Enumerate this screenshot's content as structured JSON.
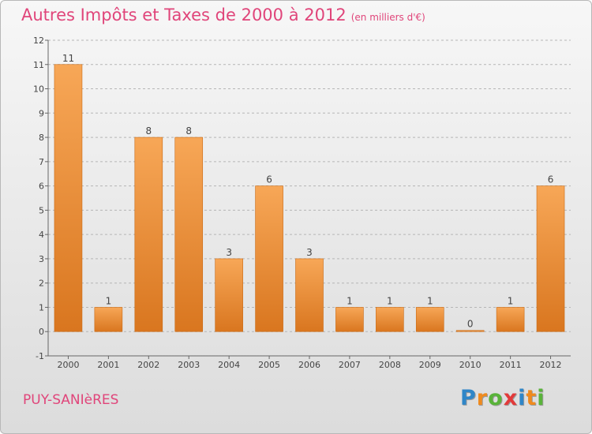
{
  "title": "Autres Impôts et Taxes de 2000 à 2012",
  "subtitle": "(en milliers d'€)",
  "place": "PUY-SANIèRES",
  "logo": {
    "text": "Proxiti",
    "letters": [
      {
        "ch": "P",
        "color": "#2f86c8"
      },
      {
        "ch": "r",
        "color": "#ef8a1e"
      },
      {
        "ch": "o",
        "color": "#59b33a"
      },
      {
        "ch": "x",
        "color": "#e23a3a"
      },
      {
        "ch": "i",
        "color": "#2f86c8"
      },
      {
        "ch": "t",
        "color": "#ef8a1e"
      },
      {
        "ch": "i",
        "color": "#59b33a"
      }
    ]
  },
  "colors": {
    "title": "#e0457a",
    "bar_top": "#f7a757",
    "bar_bottom": "#d9761f",
    "grid": "#b5b5b5",
    "axis_text": "#444444"
  },
  "chart_data": {
    "type": "bar",
    "title": "Autres Impôts et Taxes de 2000 à 2012",
    "subtitle": "(en milliers d'€)",
    "categories": [
      "2000",
      "2001",
      "2002",
      "2003",
      "2004",
      "2005",
      "2006",
      "2007",
      "2008",
      "2009",
      "2010",
      "2011",
      "2012"
    ],
    "values": [
      11,
      1,
      8,
      8,
      3,
      6,
      3,
      1,
      1,
      1,
      0,
      1,
      6
    ],
    "value_labels": [
      "11",
      "1",
      "8",
      "8",
      "3",
      "6",
      "3",
      "1",
      "1",
      "1",
      "0",
      "1",
      "6"
    ],
    "ylim": [
      -1,
      12
    ],
    "yticks": [
      -1,
      0,
      1,
      2,
      3,
      4,
      5,
      6,
      7,
      8,
      9,
      10,
      11,
      12
    ],
    "ytick_labels": [
      "-1",
      "0",
      "1",
      "2",
      "3",
      "4",
      "5",
      "6",
      "7",
      "8",
      "9",
      "10",
      "11",
      "12"
    ],
    "grid": true,
    "xlabel": "",
    "ylabel": ""
  }
}
